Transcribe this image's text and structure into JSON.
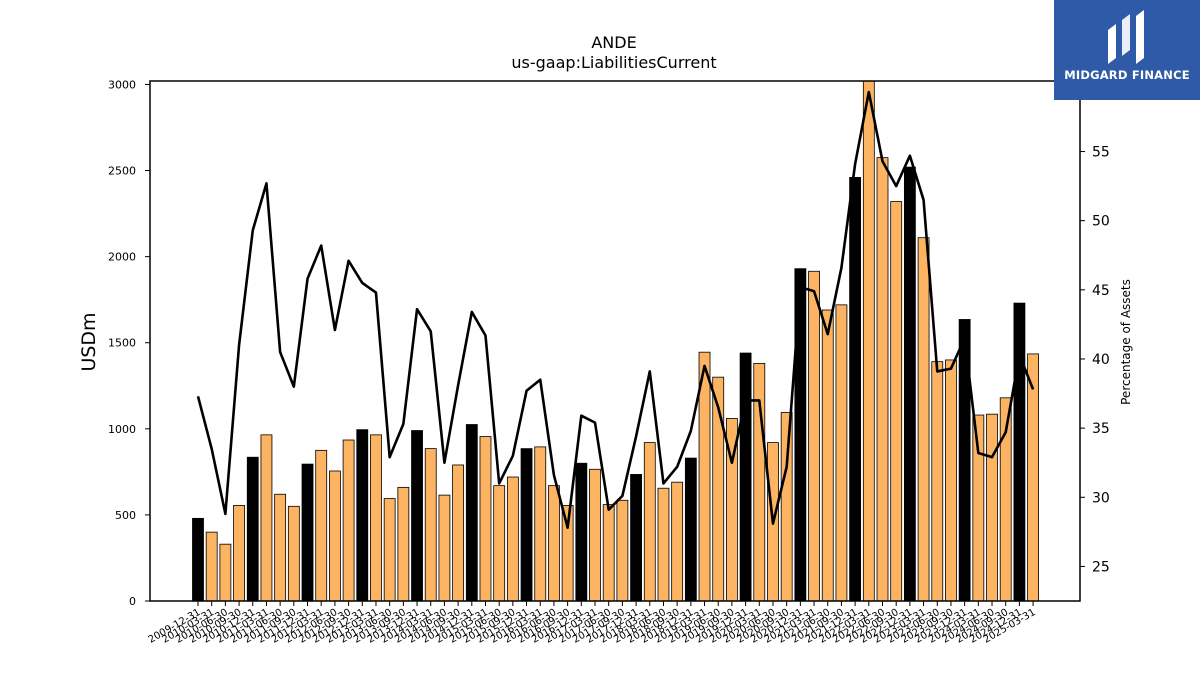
{
  "chart_data": {
    "type": "bar+line",
    "title": "ANDE",
    "subtitle": "us-gaap:LiabilitiesCurrent",
    "ylabel": "USDm",
    "y2label": "Percentage of Assets",
    "ylim": [
      0,
      3020
    ],
    "y2lim": [
      22.5,
      60.1
    ],
    "yticks": [
      0,
      500,
      1000,
      1500,
      2000,
      2500,
      3000
    ],
    "y2ticks": [
      25,
      30,
      35,
      40,
      45,
      50,
      55
    ],
    "grid": false,
    "colors": {
      "annual_bar": "#000000",
      "quarter_bar": "#fdb462",
      "line": "#000000"
    },
    "categories": [
      "2009-12-31",
      "2010-03-31",
      "2010-06-30",
      "2010-09-30",
      "2010-12-31",
      "2011-03-31",
      "2011-06-30",
      "2011-09-30",
      "2011-12-31",
      "2012-03-31",
      "2012-06-30",
      "2012-09-30",
      "2012-12-31",
      "2013-03-31",
      "2013-06-30",
      "2013-09-30",
      "2013-12-31",
      "2014-03-31",
      "2014-06-30",
      "2014-09-30",
      "2014-12-31",
      "2015-03-31",
      "2015-06-30",
      "2015-09-30",
      "2015-12-31",
      "2016-03-31",
      "2016-06-30",
      "2016-09-30",
      "2016-12-31",
      "2017-03-31",
      "2017-06-30",
      "2017-09-30",
      "2017-12-31",
      "2018-03-31",
      "2018-06-30",
      "2018-09-30",
      "2018-12-31",
      "2019-03-31",
      "2019-06-30",
      "2019-09-30",
      "2019-12-31",
      "2020-03-31",
      "2020-06-30",
      "2020-09-30",
      "2020-12-31",
      "2021-03-31",
      "2021-06-30",
      "2021-09-30",
      "2021-12-31",
      "2022-03-31",
      "2022-06-30",
      "2022-09-30",
      "2022-12-31",
      "2023-03-31",
      "2023-06-30",
      "2023-09-30",
      "2023-12-31",
      "2024-03-31",
      "2024-06-30",
      "2024-09-30",
      "2024-12-31",
      "2025-03-31"
    ],
    "series": [
      {
        "type": "bar",
        "values": [
          480,
          400,
          330,
          555,
          835,
          965,
          620,
          550,
          795,
          875,
          755,
          935,
          995,
          965,
          595,
          660,
          990,
          885,
          615,
          790,
          1025,
          955,
          670,
          720,
          885,
          895,
          670,
          555,
          800,
          765,
          560,
          585,
          735,
          920,
          655,
          690,
          830,
          1445,
          1300,
          1060,
          1440,
          1380,
          920,
          1095,
          1930,
          1915,
          1690,
          1720,
          2460,
          3020,
          2575,
          2320,
          2520,
          2110,
          1390,
          1400,
          1635,
          1080,
          1085,
          1180,
          1730,
          1435
        ],
        "annual": [
          true,
          false,
          false,
          false,
          true,
          false,
          false,
          false,
          true,
          false,
          false,
          false,
          true,
          false,
          false,
          false,
          true,
          false,
          false,
          false,
          true,
          false,
          false,
          false,
          true,
          false,
          false,
          false,
          true,
          false,
          false,
          false,
          true,
          false,
          false,
          false,
          true,
          false,
          false,
          false,
          true,
          false,
          false,
          false,
          true,
          false,
          false,
          false,
          true,
          false,
          false,
          false,
          true,
          false,
          false,
          false,
          true,
          false,
          false,
          false,
          true,
          false
        ]
      },
      {
        "type": "line",
        "axis": "y2",
        "values": [
          37.3,
          33.5,
          28.8,
          41.0,
          49.3,
          52.7,
          40.5,
          38.0,
          45.8,
          48.2,
          42.1,
          47.1,
          45.5,
          44.8,
          32.9,
          35.3,
          43.6,
          42.0,
          32.5,
          38.1,
          43.4,
          41.7,
          31.0,
          33.0,
          37.7,
          38.5,
          31.6,
          27.8,
          35.9,
          35.4,
          29.1,
          30.1,
          34.4,
          39.1,
          31.0,
          32.2,
          34.8,
          39.5,
          36.5,
          32.5,
          37.0,
          37.0,
          28.1,
          32.2,
          45.2,
          44.9,
          41.8,
          46.6,
          54.1,
          59.3,
          54.3,
          52.5,
          54.7,
          51.5,
          39.1,
          39.3,
          41.5,
          33.2,
          32.9,
          34.7,
          40.3,
          37.8
        ]
      }
    ]
  },
  "logo": {
    "text": "MIDGARD FINANCE"
  }
}
